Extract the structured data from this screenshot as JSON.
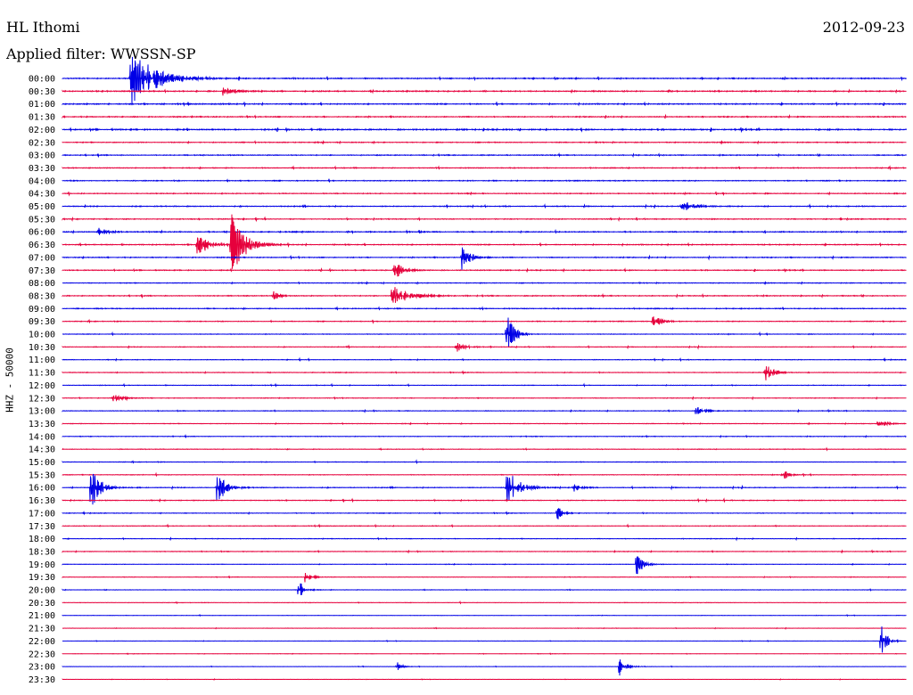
{
  "header": {
    "station": "HL Ithomi",
    "date": "2012-09-23",
    "filter": "Applied filter: WWSSN-SP"
  },
  "chart_data": {
    "type": "line",
    "title": "HL Ithomi",
    "subtitle": "Applied filter: WWSSN-SP",
    "date": "2012-09-23",
    "ylabel": "HHZ - 50000",
    "xlabel": "",
    "grid": false,
    "colors": [
      "#0000e6",
      "#e6003c"
    ],
    "rows": [
      "00:00",
      "00:30",
      "01:00",
      "01:30",
      "02:00",
      "02:30",
      "03:00",
      "03:30",
      "04:00",
      "04:30",
      "05:00",
      "05:30",
      "06:00",
      "06:30",
      "07:00",
      "07:30",
      "08:00",
      "08:30",
      "09:00",
      "09:30",
      "10:00",
      "10:30",
      "11:00",
      "11:30",
      "12:00",
      "12:30",
      "13:00",
      "13:30",
      "14:00",
      "14:30",
      "15:00",
      "15:30",
      "16:00",
      "16:30",
      "17:00",
      "17:30",
      "18:00",
      "18:30",
      "19:00",
      "19:30",
      "20:00",
      "20:30",
      "21:00",
      "21:30",
      "22:00",
      "22:30",
      "23:00",
      "23:30"
    ],
    "noise": [
      0.35,
      0.4,
      0.4,
      0.35,
      0.45,
      0.3,
      0.3,
      0.3,
      0.3,
      0.3,
      0.3,
      0.3,
      0.35,
      0.35,
      0.3,
      0.3,
      0.25,
      0.3,
      0.3,
      0.25,
      0.2,
      0.2,
      0.2,
      0.2,
      0.2,
      0.2,
      0.2,
      0.2,
      0.2,
      0.2,
      0.2,
      0.2,
      0.25,
      0.25,
      0.2,
      0.2,
      0.2,
      0.2,
      0.15,
      0.15,
      0.15,
      0.15,
      0.1,
      0.1,
      0.1,
      0.1,
      0.1,
      0.1
    ],
    "events": [
      {
        "row": 0,
        "t": 2.4,
        "amp": 40,
        "dur": 1.6
      },
      {
        "row": 1,
        "t": 5.7,
        "amp": 5,
        "dur": 0.7
      },
      {
        "row": 10,
        "t": 22.0,
        "amp": 6,
        "dur": 1.0
      },
      {
        "row": 12,
        "t": 1.3,
        "amp": 5,
        "dur": 0.6
      },
      {
        "row": 13,
        "t": 4.8,
        "amp": 18,
        "dur": 0.6
      },
      {
        "row": 13,
        "t": 6.0,
        "amp": 45,
        "dur": 0.8
      },
      {
        "row": 14,
        "t": 14.2,
        "amp": 14,
        "dur": 0.6
      },
      {
        "row": 15,
        "t": 11.8,
        "amp": 12,
        "dur": 0.6
      },
      {
        "row": 17,
        "t": 11.7,
        "amp": 12,
        "dur": 1.2
      },
      {
        "row": 17,
        "t": 7.5,
        "amp": 6,
        "dur": 0.4
      },
      {
        "row": 19,
        "t": 21.0,
        "amp": 7,
        "dur": 0.6
      },
      {
        "row": 20,
        "t": 15.8,
        "amp": 25,
        "dur": 0.5
      },
      {
        "row": 21,
        "t": 14.0,
        "amp": 7,
        "dur": 0.6
      },
      {
        "row": 23,
        "t": 25.0,
        "amp": 12,
        "dur": 0.5
      },
      {
        "row": 25,
        "t": 1.8,
        "amp": 5,
        "dur": 0.6
      },
      {
        "row": 26,
        "t": 22.5,
        "amp": 7,
        "dur": 0.6
      },
      {
        "row": 27,
        "t": 29.0,
        "amp": 7,
        "dur": 0.5
      },
      {
        "row": 31,
        "t": 25.6,
        "amp": 8,
        "dur": 0.4
      },
      {
        "row": 32,
        "t": 1.0,
        "amp": 30,
        "dur": 0.6
      },
      {
        "row": 32,
        "t": 5.5,
        "amp": 20,
        "dur": 0.6
      },
      {
        "row": 32,
        "t": 15.8,
        "amp": 24,
        "dur": 0.8
      },
      {
        "row": 32,
        "t": 18.2,
        "amp": 6,
        "dur": 0.4
      },
      {
        "row": 34,
        "t": 17.6,
        "amp": 9,
        "dur": 0.4
      },
      {
        "row": 38,
        "t": 20.4,
        "amp": 14,
        "dur": 0.5
      },
      {
        "row": 39,
        "t": 8.6,
        "amp": 8,
        "dur": 0.4
      },
      {
        "row": 40,
        "t": 8.4,
        "amp": 12,
        "dur": 0.4
      },
      {
        "row": 44,
        "t": 29.1,
        "amp": 22,
        "dur": 0.4
      },
      {
        "row": 46,
        "t": 11.9,
        "amp": 6,
        "dur": 0.3
      },
      {
        "row": 46,
        "t": 19.8,
        "amp": 12,
        "dur": 0.5
      }
    ]
  }
}
